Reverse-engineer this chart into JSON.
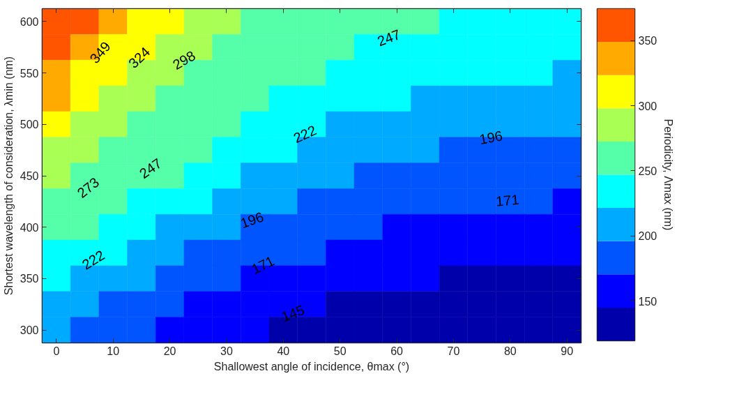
{
  "chart_data": {
    "type": "heatmap",
    "xlabel": "Shallowest angle of incidence, θmax (°)",
    "ylabel": "Shortest wavelength of consideration, λmin (nm)",
    "clabel": "Periodicity, Λmax (nm)",
    "categories": [
      "0",
      null,
      "10",
      null,
      "20",
      null,
      "30",
      null,
      "40",
      null,
      "50",
      null,
      "60",
      null,
      "70",
      null,
      "80",
      null,
      "90"
    ],
    "y_categories": [
      "600",
      null,
      "550",
      null,
      "500",
      null,
      "450",
      null,
      "400",
      null,
      "350",
      null,
      "300"
    ],
    "cells": [
      [
        371,
        352,
        332,
        315,
        298,
        286,
        273,
        269,
        264,
        260,
        256,
        254,
        251,
        249,
        246,
        245,
        243,
        242,
        240
      ],
      [
        356,
        337,
        317,
        302,
        286,
        277,
        268,
        264,
        259,
        254,
        250,
        246,
        242,
        240,
        236,
        235,
        233,
        232,
        230
      ],
      [
        340,
        321,
        302,
        288,
        273,
        268,
        262,
        258,
        253,
        248,
        243,
        238,
        233,
        230,
        226,
        225,
        223,
        222,
        220
      ],
      [
        324,
        306,
        288,
        278,
        267,
        262,
        257,
        251,
        244,
        238,
        232,
        227,
        223,
        220,
        216,
        215,
        213,
        212,
        210
      ],
      [
        307,
        290,
        273,
        267,
        261,
        256,
        251,
        243,
        234,
        228,
        221,
        217,
        212,
        209,
        205,
        204,
        202,
        201,
        200
      ],
      [
        290,
        278,
        266,
        261,
        255,
        247,
        239,
        231,
        222,
        216,
        210,
        206,
        201,
        198,
        195,
        194,
        192,
        191,
        190
      ],
      [
        273,
        266,
        259,
        254,
        249,
        238,
        226,
        218,
        209,
        204,
        199,
        195,
        190,
        187,
        184,
        183,
        182,
        181,
        180
      ],
      [
        265,
        258,
        251,
        242,
        232,
        222,
        211,
        205,
        198,
        193,
        188,
        185,
        180,
        177,
        174,
        173,
        172,
        171,
        170
      ],
      [
        256,
        249,
        242,
        229,
        215,
        206,
        196,
        191,
        186,
        182,
        177,
        174,
        170,
        167,
        164,
        163,
        162,
        161,
        160
      ],
      [
        244,
        234,
        224,
        213,
        200,
        194,
        186,
        181,
        175,
        171,
        166,
        163,
        159,
        157,
        154,
        153,
        152,
        151,
        150
      ],
      [
        232,
        219,
        206,
        196,
        185,
        181,
        176,
        170,
        164,
        159,
        154,
        151,
        148,
        146,
        144,
        143,
        142,
        141,
        140
      ],
      [
        217,
        205,
        192,
        184,
        174,
        169,
        163,
        158,
        152,
        147,
        142,
        140,
        137,
        136,
        134,
        133,
        132,
        131,
        130
      ],
      [
        201,
        190,
        178,
        171,
        163,
        157,
        150,
        145,
        140,
        135,
        130,
        128,
        126,
        125,
        124,
        123,
        122,
        121,
        120
      ]
    ],
    "colors": [
      "#0000aa",
      "#0000ff",
      "#0055ff",
      "#00aaff",
      "#00ffff",
      "#55ffaa",
      "#aaff55",
      "#ffff00",
      "#ffaa00",
      "#ff5500"
    ],
    "clim": [
      119.5,
      374.5
    ],
    "cticks": [
      150,
      200,
      250,
      300,
      350
    ],
    "annotations": [
      "349",
      "324",
      "298",
      "273",
      "247",
      "247",
      "222",
      "222",
      "196",
      "196",
      "171",
      "171",
      "145"
    ]
  }
}
